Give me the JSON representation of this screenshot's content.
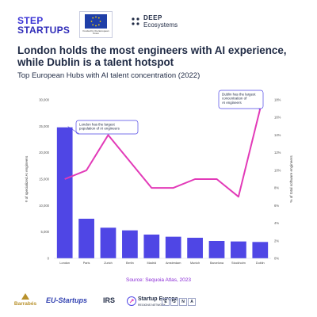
{
  "header": {
    "step_logo_line1": "STEP",
    "step_logo_line2": "STARTUPS",
    "eu_logo_text": "Funded by the European Union",
    "deep_line1": "DEEP",
    "deep_line2": "Ecosystems"
  },
  "headline": "London holds the most engineers with AI experience, while Dublin is a talent hotspot",
  "subhead": "Top European Hubs with AI talent concentration (2022)",
  "source": "Source: Sequoia Atlas, 2023",
  "partners": {
    "barrabes": "Barrabés",
    "eustartups": "EU-Startups",
    "irs": "IRS",
    "ser_title": "Startup Europe",
    "ser_sub": "REGIONS NETWORK",
    "esna": [
      "E",
      "S",
      "N",
      "A"
    ]
  },
  "colors": {
    "bar": "#4f46e5",
    "line": "#e23ab8",
    "annotation_border": "#4f46e5",
    "source_text": "#8a2ad6"
  },
  "chart_data": {
    "type": "bar",
    "categories": [
      "London",
      "Paris",
      "Zurich",
      "Berlin",
      "Madrid",
      "Amsterdam",
      "Munich",
      "Barcelona",
      "Stockholm",
      "Dublin"
    ],
    "series": [
      {
        "axis": "left",
        "type": "bar",
        "values": [
          24800,
          7500,
          5800,
          5300,
          4500,
          4100,
          3900,
          3300,
          3200,
          3100
        ]
      },
      {
        "axis": "right",
        "type": "line",
        "values": [
          9,
          10,
          14,
          11,
          8,
          8,
          9,
          9,
          7,
          17
        ]
      }
    ],
    "ylabel_left": "# of specialized AI engineers",
    "ylabel_right": "% of total software engineers",
    "y_left_ticks": [
      "0",
      "5,000",
      "10,000",
      "15,000",
      "20,000",
      "25,000",
      "30,000"
    ],
    "y_right_ticks": [
      "0%",
      "2%",
      "4%",
      "6%",
      "8%",
      "10%",
      "12%",
      "14%",
      "16%",
      "18%"
    ],
    "ylim_left": [
      0,
      30000
    ],
    "ylim_right": [
      0,
      18
    ],
    "annotations": [
      {
        "text": "London has the largest population of AI engineers"
      },
      {
        "text": "Dublin has the largest concentration of AI engineers"
      }
    ]
  }
}
